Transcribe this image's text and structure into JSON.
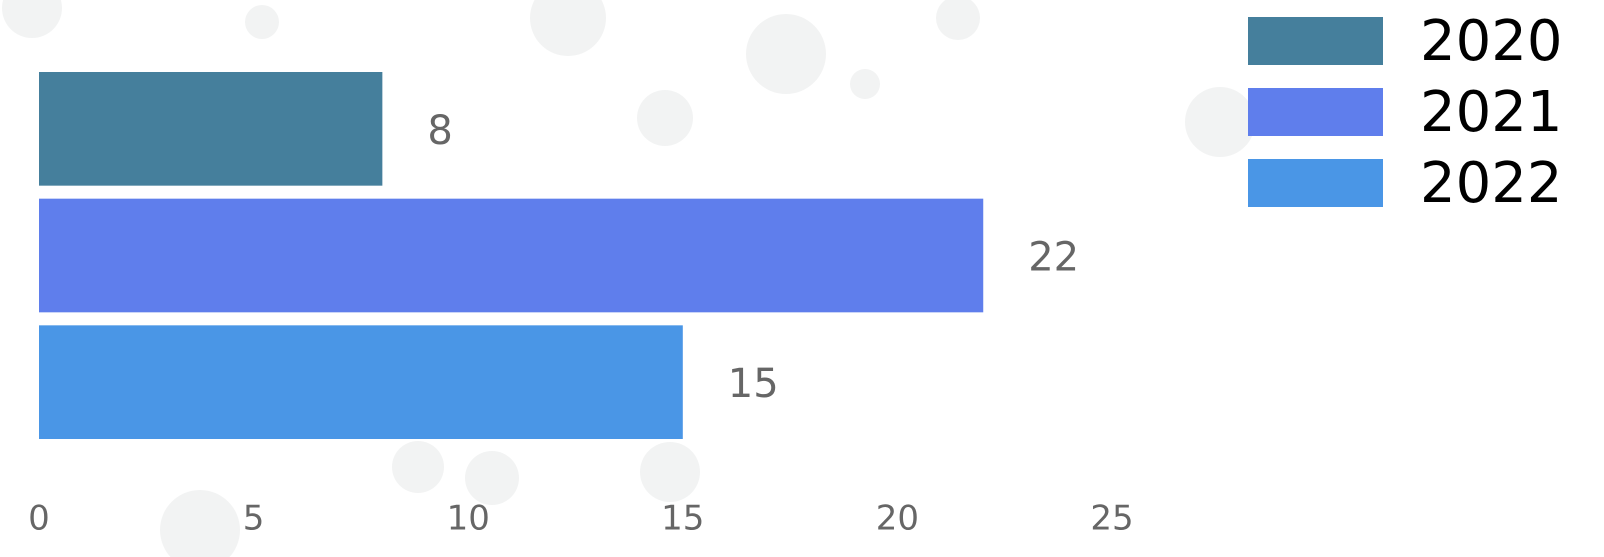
{
  "chart_data": {
    "type": "bar",
    "orientation": "horizontal",
    "series": [
      {
        "name": "2020",
        "color": "#457f9c",
        "values": [
          8
        ]
      },
      {
        "name": "2021",
        "color": "#5f7eec",
        "values": [
          22
        ]
      },
      {
        "name": "2022",
        "color": "#4a96e6",
        "values": [
          15
        ]
      }
    ],
    "xlim": [
      0,
      25
    ],
    "xticks": [
      0,
      5,
      10,
      15,
      20,
      25
    ],
    "legend": "top-right",
    "grid": false,
    "data_labels": true
  }
}
